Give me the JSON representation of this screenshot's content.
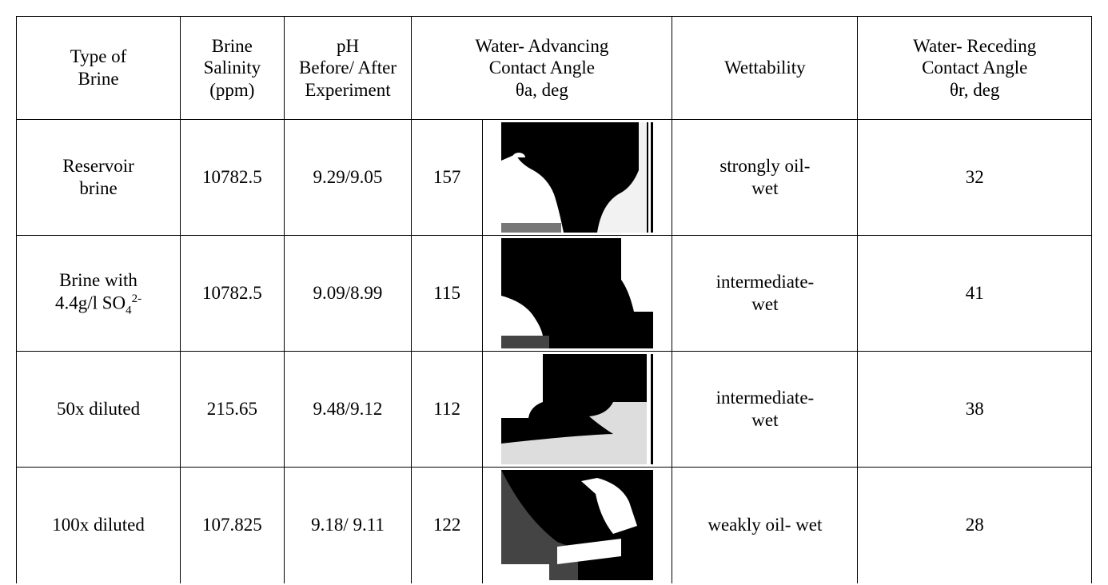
{
  "table": {
    "headers": [
      [
        "Type of",
        "Brine"
      ],
      [
        "Brine",
        "Salinity",
        "(ppm)"
      ],
      [
        "pH",
        "Before/ After",
        "Experiment"
      ],
      [
        "Water- Advancing",
        "Contact Angle",
        "θa, deg"
      ],
      [
        "Wettability"
      ],
      [
        "Water- Receding",
        "Contact Angle",
        "θr, deg"
      ]
    ],
    "rows": [
      {
        "type": [
          "Reservoir",
          "brine"
        ],
        "salinity": "10782.5",
        "ph": "9.29/9.05",
        "advancing": "157",
        "wettability": [
          "strongly oil-",
          "wet"
        ],
        "receding": "32"
      },
      {
        "type": [
          "Brine with",
          "4.4g/l SO",
          "4",
          "2-"
        ],
        "salinity": "10782.5",
        "ph": "9.09/8.99",
        "advancing": "115",
        "wettability": [
          "intermediate-",
          "wet"
        ],
        "receding": "41"
      },
      {
        "type": [
          "50x diluted"
        ],
        "salinity": "215.65",
        "ph": "9.48/9.12",
        "advancing": "112",
        "wettability": [
          "intermediate-",
          "wet"
        ],
        "receding": "38"
      },
      {
        "type": [
          "100x diluted"
        ],
        "salinity": "107.825",
        "ph": "9.18/ 9.11",
        "advancing": "122",
        "wettability": [
          "weakly oil- wet"
        ],
        "receding": "28"
      }
    ]
  }
}
